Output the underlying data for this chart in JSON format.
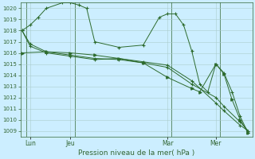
{
  "background_color": "#cceeff",
  "grid_color": "#aacccc",
  "line_color": "#2d6b2d",
  "title": "Pression niveau de la mer( hPa )",
  "ylim_low": 1008.5,
  "ylim_high": 1020.5,
  "yticks": [
    1009,
    1010,
    1011,
    1012,
    1013,
    1014,
    1015,
    1016,
    1017,
    1018,
    1019,
    1020
  ],
  "xlim_low": -0.2,
  "xlim_high": 28.5,
  "xtick_positions": [
    1,
    6,
    18,
    24
  ],
  "xtick_labels": [
    "Lun",
    "Jeu",
    "Mar",
    "Mer"
  ],
  "vline_positions": [
    0.5,
    6.5,
    18.5,
    24.5
  ],
  "line1_x": [
    0,
    1,
    3,
    6,
    9,
    12,
    15,
    18,
    21,
    24,
    25,
    27,
    28
  ],
  "line1_y": [
    1018.0,
    1016.8,
    1016.1,
    1015.8,
    1015.5,
    1015.4,
    1015.1,
    1014.7,
    1013.2,
    1012.0,
    1011.2,
    1009.8,
    1009.0
  ],
  "line2_x": [
    0,
    1,
    3,
    6,
    9,
    12,
    15,
    18,
    21,
    24,
    25,
    27,
    28
  ],
  "line2_y": [
    1018.0,
    1016.6,
    1016.0,
    1015.7,
    1015.4,
    1015.5,
    1015.2,
    1014.9,
    1013.5,
    1011.5,
    1010.8,
    1009.5,
    1009.0
  ],
  "line3_x": [
    0,
    1,
    2,
    3,
    5,
    6,
    7,
    8,
    9,
    12,
    15,
    17,
    18,
    19,
    20,
    21,
    22,
    23,
    24,
    25,
    26,
    27,
    28
  ],
  "line3_y": [
    1018.0,
    1018.5,
    1019.2,
    1020.0,
    1020.5,
    1020.5,
    1020.3,
    1020.0,
    1017.0,
    1016.5,
    1016.7,
    1019.2,
    1019.5,
    1019.5,
    1018.5,
    1016.2,
    1013.2,
    1012.5,
    1015.0,
    1014.2,
    1012.5,
    1010.3,
    1008.8
  ],
  "line4_x": [
    0,
    3,
    6,
    9,
    12,
    15,
    18,
    21,
    22,
    24,
    25,
    26,
    27,
    28
  ],
  "line4_y": [
    1016.0,
    1016.1,
    1016.0,
    1015.8,
    1015.5,
    1015.1,
    1013.8,
    1012.8,
    1012.5,
    1015.0,
    1014.1,
    1011.8,
    1010.0,
    1008.8
  ],
  "vline_color": "#336633",
  "spine_color": "#336633",
  "tick_label_color": "#336633",
  "title_color": "#336633",
  "title_fontsize": 6.5,
  "tick_fontsize": 5.0
}
